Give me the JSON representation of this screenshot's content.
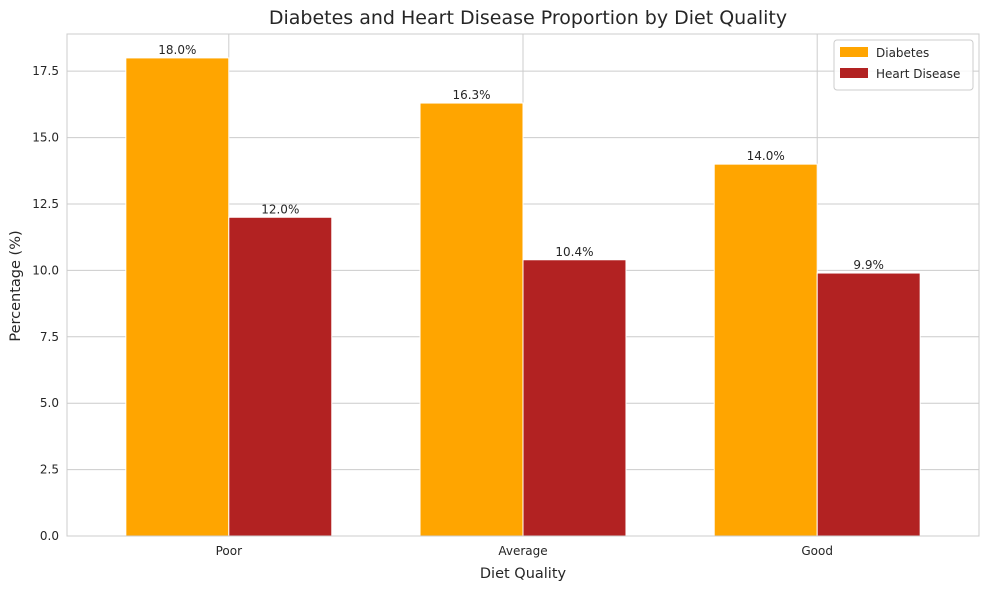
{
  "chart_data": {
    "type": "bar",
    "title": "Diabetes and Heart Disease Proportion by Diet Quality",
    "xlabel": "Diet Quality",
    "ylabel": "Percentage (%)",
    "categories": [
      "Poor",
      "Average",
      "Good"
    ],
    "series": [
      {
        "name": "Diabetes",
        "color": "#ffa500",
        "values": [
          18.0,
          16.3,
          14.0
        ],
        "labels": [
          "18.0%",
          "16.3%",
          "14.0%"
        ]
      },
      {
        "name": "Heart Disease",
        "color": "#b22222",
        "values": [
          12.0,
          10.4,
          9.9
        ],
        "labels": [
          "12.0%",
          "10.4%",
          "9.9%"
        ]
      }
    ],
    "ylim": [
      0,
      18.9
    ],
    "yticks": [
      "0.0",
      "2.5",
      "5.0",
      "7.5",
      "10.0",
      "12.5",
      "15.0",
      "17.5"
    ],
    "grid": true,
    "legend_position": "top-right"
  }
}
